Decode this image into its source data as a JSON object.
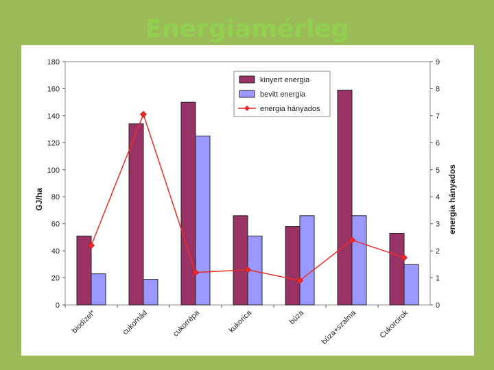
{
  "slide": {
    "title": "Energiamérleg"
  },
  "chart_data": {
    "type": "bar",
    "title": "",
    "xlabel": "",
    "ylabel": "GJ/ha",
    "y2label": "energia hányados",
    "ylim": [
      0,
      180
    ],
    "y2lim": [
      0,
      9
    ],
    "yticks": [
      0,
      20,
      40,
      60,
      80,
      100,
      120,
      140,
      160,
      180
    ],
    "y2ticks": [
      0,
      1,
      2,
      3,
      4,
      5,
      6,
      7,
      8,
      9
    ],
    "categories": [
      "biodízel*",
      "cukornád",
      "cukorrépa",
      "kukorica",
      "búza",
      "búza+szalma",
      "Cukorcirok"
    ],
    "series": [
      {
        "name": "kinyert energia",
        "type": "bar",
        "axis": "left",
        "color": "#993366",
        "values": [
          51,
          134,
          150,
          66,
          58,
          159,
          53
        ]
      },
      {
        "name": "bevitt energia",
        "type": "bar",
        "axis": "left",
        "color": "#9999ff",
        "values": [
          23,
          19,
          125,
          51,
          66,
          66,
          30
        ]
      },
      {
        "name": "energia hányados",
        "type": "line",
        "axis": "right",
        "color": "#ee2a2a",
        "values": [
          2.2,
          7.05,
          1.2,
          1.3,
          0.9,
          2.4,
          1.75
        ]
      }
    ],
    "legend": "top-center"
  }
}
